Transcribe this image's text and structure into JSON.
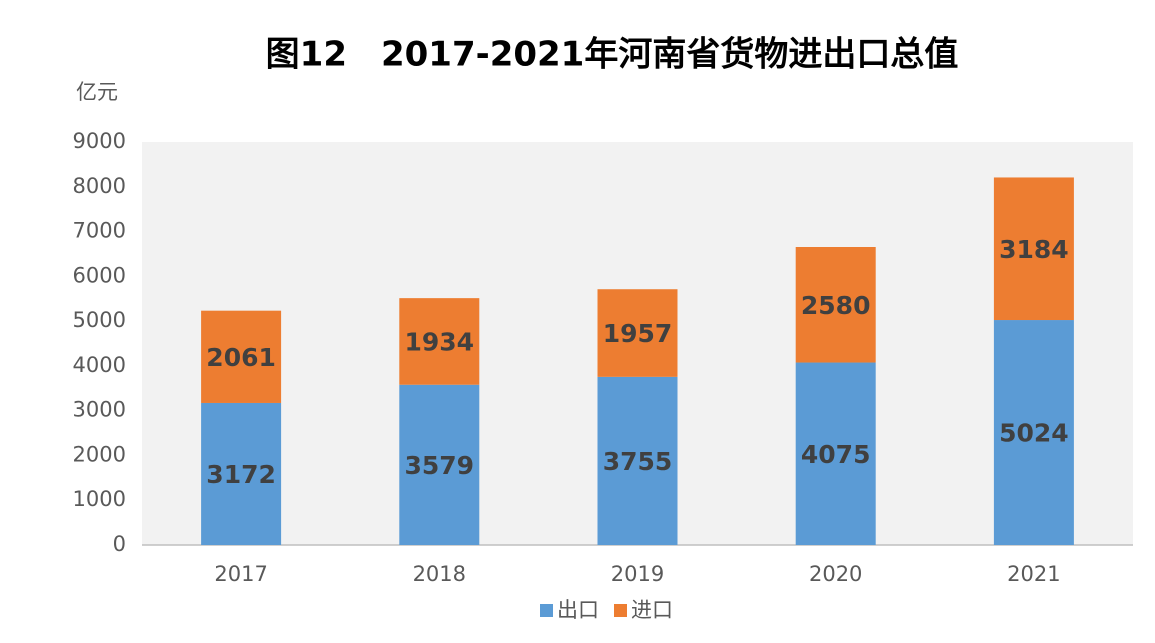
{
  "chart_data": {
    "type": "bar",
    "stacked": true,
    "title": "图12　2017-2021年河南省货物进出口总值",
    "ylabel": "亿元",
    "categories": [
      "2017",
      "2018",
      "2019",
      "2020",
      "2021"
    ],
    "series": [
      {
        "name": "出口",
        "color": "#5b9bd5",
        "values": [
          3172,
          3579,
          3755,
          4075,
          5024
        ]
      },
      {
        "name": "进口",
        "color": "#ed7d31",
        "values": [
          2061,
          1934,
          1957,
          2580,
          3184
        ]
      }
    ],
    "ylim": [
      0,
      9000
    ],
    "yticks": [
      0,
      1000,
      2000,
      3000,
      4000,
      5000,
      6000,
      7000,
      8000,
      9000
    ],
    "legend": "bottom"
  }
}
